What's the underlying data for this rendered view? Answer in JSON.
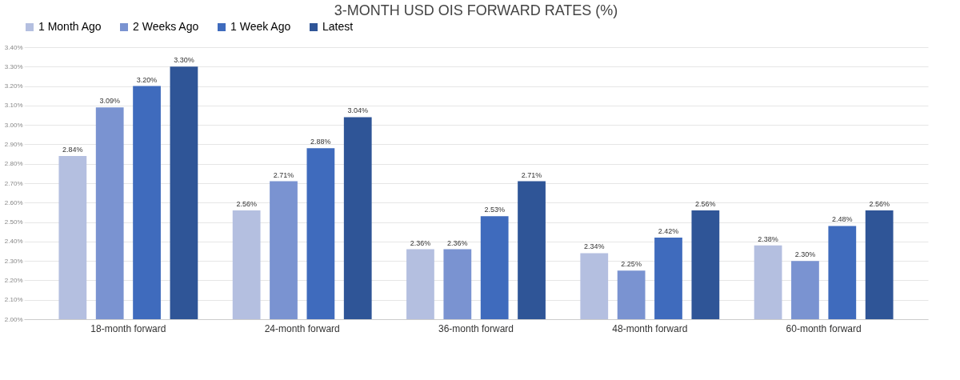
{
  "chart_data": {
    "type": "bar",
    "title": "3-MONTH USD OIS FORWARD RATES (%)",
    "categories": [
      "18-month forward",
      "24-month forward",
      "36-month forward",
      "48-month forward",
      "60-month forward"
    ],
    "series": [
      {
        "name": "1 Month Ago",
        "color": "#b4bfe0",
        "values": [
          2.84,
          2.56,
          2.36,
          2.34,
          2.38
        ],
        "value_labels": [
          "2.84%",
          "2.56%",
          "2.36%",
          "2.34%",
          "2.38%"
        ]
      },
      {
        "name": "2 Weeks Ago",
        "color": "#7a93d1",
        "values": [
          3.09,
          2.71,
          2.36,
          2.25,
          2.3
        ],
        "value_labels": [
          "3.09%",
          "2.71%",
          "2.36%",
          "2.25%",
          "2.30%"
        ]
      },
      {
        "name": "1 Week Ago",
        "color": "#3f6bbd",
        "values": [
          3.2,
          2.88,
          2.53,
          2.42,
          2.48
        ],
        "value_labels": [
          "3.20%",
          "2.88%",
          "2.53%",
          "2.42%",
          "2.48%"
        ]
      },
      {
        "name": "Latest",
        "color": "#2f5597",
        "values": [
          3.3,
          3.04,
          2.71,
          2.56,
          2.56
        ],
        "value_labels": [
          "3.30%",
          "3.04%",
          "2.71%",
          "2.56%",
          "2.56%"
        ]
      }
    ],
    "ylim": [
      2.0,
      3.4
    ],
    "yticks": [
      {
        "value": 2.0,
        "label": "2.00%"
      },
      {
        "value": 2.1,
        "label": "2.10%"
      },
      {
        "value": 2.2,
        "label": "2.20%"
      },
      {
        "value": 2.3,
        "label": "2.30%"
      },
      {
        "value": 2.4,
        "label": "2.40%"
      },
      {
        "value": 2.5,
        "label": "2.50%"
      },
      {
        "value": 2.6,
        "label": "2.60%"
      },
      {
        "value": 2.7,
        "label": "2.70%"
      },
      {
        "value": 2.8,
        "label": "2.80%"
      },
      {
        "value": 2.9,
        "label": "2.90%"
      },
      {
        "value": 3.0,
        "label": "3.00%"
      },
      {
        "value": 3.1,
        "label": "3.10%"
      },
      {
        "value": 3.2,
        "label": "3.20%"
      },
      {
        "value": 3.3,
        "label": "3.30%"
      },
      {
        "value": 3.4,
        "label": "3.40%"
      }
    ],
    "grid": "y",
    "legend": "top"
  }
}
